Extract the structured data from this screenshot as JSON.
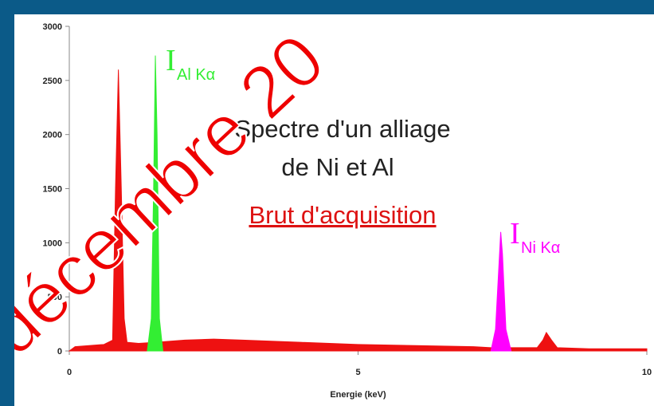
{
  "chart_data": {
    "type": "area",
    "x_label": "Energie (keV)",
    "xlim": [
      0,
      10
    ],
    "xticks": [
      0,
      5,
      10
    ],
    "ylim": [
      0,
      3000
    ],
    "yticks": [
      0,
      500,
      1000,
      1500,
      2000,
      2500,
      3000
    ],
    "series": [
      {
        "color": "#ee1111",
        "x": [
          0,
          0.1,
          0.6,
          0.75,
          0.8,
          0.85,
          0.9,
          0.95,
          1.0,
          1.2,
          1.5,
          2,
          2.5,
          3,
          3.5,
          4,
          5,
          6,
          7,
          7.3,
          8.1,
          8.2,
          8.26,
          8.35,
          8.45,
          9,
          10
        ],
        "values": [
          0,
          40,
          60,
          100,
          1500,
          2600,
          1500,
          300,
          80,
          70,
          80,
          100,
          110,
          100,
          90,
          80,
          60,
          50,
          40,
          30,
          30,
          100,
          170,
          100,
          30,
          20,
          20
        ]
      },
      {
        "color": "#33ee33",
        "x": [
          1.35,
          1.42,
          1.46,
          1.49,
          1.52,
          1.56,
          1.62
        ],
        "values": [
          0,
          300,
          1500,
          2730,
          2000,
          300,
          0
        ]
      },
      {
        "color": "#ff00ff",
        "x": [
          7.3,
          7.38,
          7.44,
          7.47,
          7.5,
          7.56,
          7.65
        ],
        "values": [
          0,
          200,
          800,
          1100,
          900,
          200,
          0
        ]
      }
    ],
    "annotations": {
      "title_line1": "Spectre d'un alliage",
      "title_line2": "de Ni et Al",
      "subtitle": "Brut d'acquisition",
      "al_label": {
        "main": "I",
        "sub": "Al Kα",
        "color": "#33ee33"
      },
      "ni_label": {
        "main": "I",
        "sub": "Ni Kα",
        "color": "#ff00ff"
      },
      "watermark": "décembre 20"
    }
  }
}
